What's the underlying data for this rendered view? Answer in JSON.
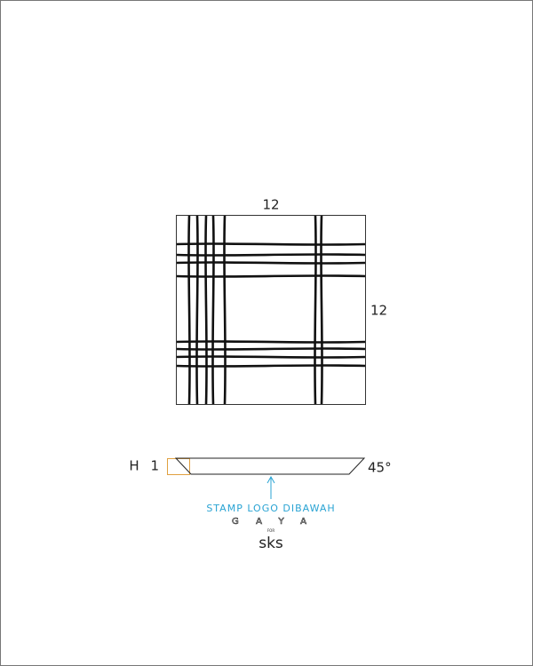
{
  "dimensions": {
    "top": "12",
    "side": "12"
  },
  "profile": {
    "thickness_label": "H 1",
    "angle_label": "45°"
  },
  "note": "STAMP LOGO DIBAWAH",
  "logo": {
    "brand": "GAYA",
    "for": "FOR",
    "client": "sks"
  }
}
